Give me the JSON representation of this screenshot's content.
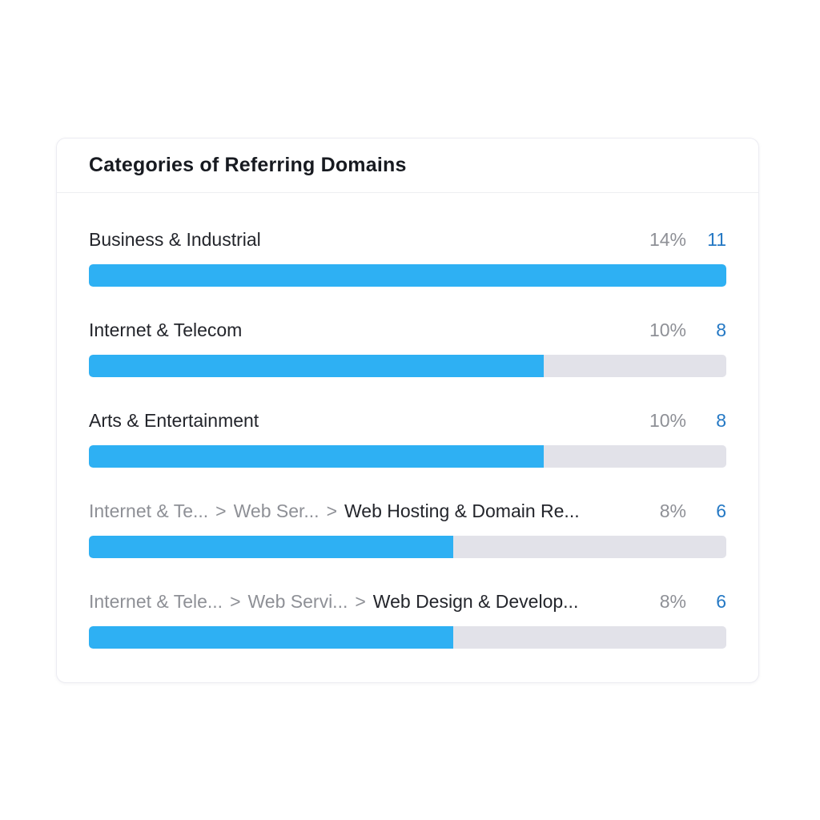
{
  "card": {
    "title": "Categories of Referring Domains",
    "separator_glyph": ">",
    "rows": [
      {
        "segments": [
          {
            "text": "Business & Industrial",
            "muted": false
          }
        ],
        "percent": "14%",
        "count": "11",
        "fill_pct": 100
      },
      {
        "segments": [
          {
            "text": "Internet & Telecom",
            "muted": false
          }
        ],
        "percent": "10%",
        "count": "8",
        "fill_pct": 71.4
      },
      {
        "segments": [
          {
            "text": "Arts & Entertainment",
            "muted": false
          }
        ],
        "percent": "10%",
        "count": "8",
        "fill_pct": 71.4
      },
      {
        "segments": [
          {
            "text": "Internet & Te...",
            "muted": true
          },
          {
            "text": "Web Ser...",
            "muted": true
          },
          {
            "text": "Web Hosting & Domain Re...",
            "muted": false
          }
        ],
        "percent": "8%",
        "count": "6",
        "fill_pct": 57.1
      },
      {
        "segments": [
          {
            "text": "Internet & Tele...",
            "muted": true
          },
          {
            "text": "Web Servi...",
            "muted": true
          },
          {
            "text": "Web Design & Develop...",
            "muted": false
          }
        ],
        "percent": "8%",
        "count": "6",
        "fill_pct": 57.1
      }
    ],
    "colors": {
      "bar_fill": "#2eb0f3",
      "bar_track": "#e2e2e9",
      "count_link": "#2478c4",
      "muted_text": "#8e9096",
      "label_text": "#23252b",
      "title_text": "#171a20",
      "divider": "#edeef1",
      "card_border": "#ececf2",
      "background": "#ffffff"
    }
  },
  "chart_data": {
    "type": "bar",
    "orientation": "horizontal",
    "title": "Categories of Referring Domains",
    "categories": [
      "Business & Industrial",
      "Internet & Telecom",
      "Arts & Entertainment",
      "Internet & Te... > Web Ser... > Web Hosting & Domain Re...",
      "Internet & Tele... > Web Servi... > Web Design & Develop..."
    ],
    "series": [
      {
        "name": "percent",
        "values": [
          14,
          10,
          10,
          8,
          8
        ]
      },
      {
        "name": "count",
        "values": [
          11,
          8,
          8,
          6,
          6
        ]
      }
    ],
    "bar_fill_pct_of_track": [
      100,
      71.4,
      71.4,
      57.1,
      57.1
    ],
    "xlabel": "",
    "ylabel": "",
    "legend": "none",
    "grid": false
  }
}
